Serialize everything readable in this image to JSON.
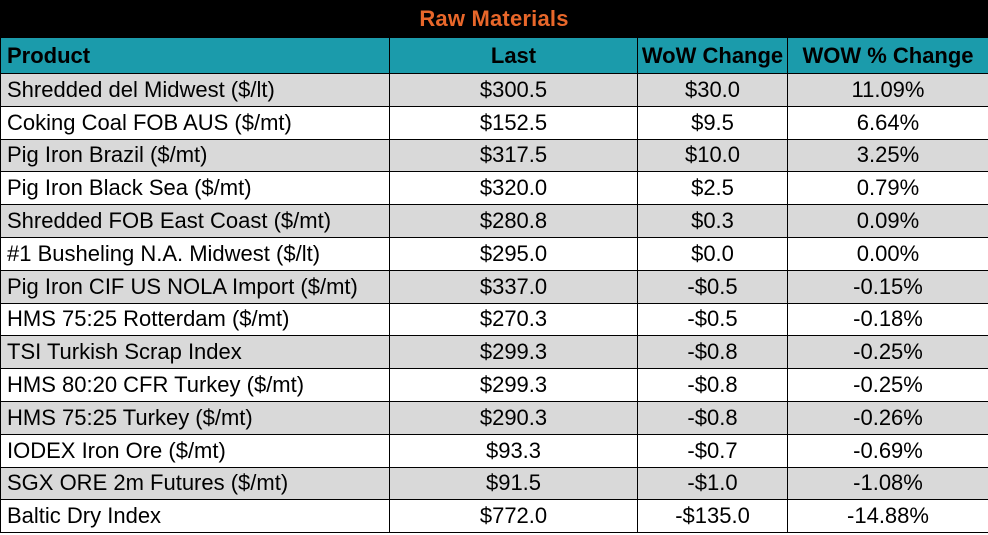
{
  "chart_data": {
    "type": "table",
    "title": "Raw Materials",
    "columns": [
      "Product",
      "Last",
      "WoW Change",
      "WOW % Change"
    ],
    "rows": [
      [
        "Shredded del  Midwest ($/lt)",
        "$300.5",
        "$30.0",
        "11.09%"
      ],
      [
        "Coking Coal FOB AUS ($/mt)",
        "$152.5",
        "$9.5",
        "6.64%"
      ],
      [
        "Pig Iron Brazil ($/mt)",
        "$317.5",
        "$10.0",
        "3.25%"
      ],
      [
        "Pig Iron Black Sea ($/mt)",
        "$320.0",
        "$2.5",
        "0.79%"
      ],
      [
        "Shredded FOB East Coast ($/mt)",
        "$280.8",
        "$0.3",
        "0.09%"
      ],
      [
        "#1 Busheling N.A. Midwest ($/lt)",
        "$295.0",
        "$0.0",
        "0.00%"
      ],
      [
        "Pig Iron CIF US NOLA Import ($/mt)",
        "$337.0",
        "-$0.5",
        "-0.15%"
      ],
      [
        "HMS 75:25 Rotterdam ($/mt)",
        "$270.3",
        "-$0.5",
        "-0.18%"
      ],
      [
        "TSI Turkish Scrap Index",
        "$299.3",
        "-$0.8",
        "-0.25%"
      ],
      [
        "HMS 80:20 CFR Turkey ($/mt)",
        "$299.3",
        "-$0.8",
        "-0.25%"
      ],
      [
        "HMS 75:25 Turkey ($/mt)",
        "$290.3",
        "-$0.8",
        "-0.26%"
      ],
      [
        "IODEX  Iron Ore ($/mt)",
        "$93.3",
        "-$0.7",
        "-0.69%"
      ],
      [
        "SGX ORE 2m Futures ($/mt)",
        "$91.5",
        "-$1.0",
        "-1.08%"
      ],
      [
        "Baltic Dry Index",
        "$772.0",
        "-$135.0",
        "-14.88%"
      ]
    ]
  },
  "colors": {
    "title_background": "#000000",
    "title_text": "#e8672a",
    "header_background": "#1b9bab",
    "shaded_row": "#d9d9d9",
    "plain_row": "#ffffff"
  }
}
